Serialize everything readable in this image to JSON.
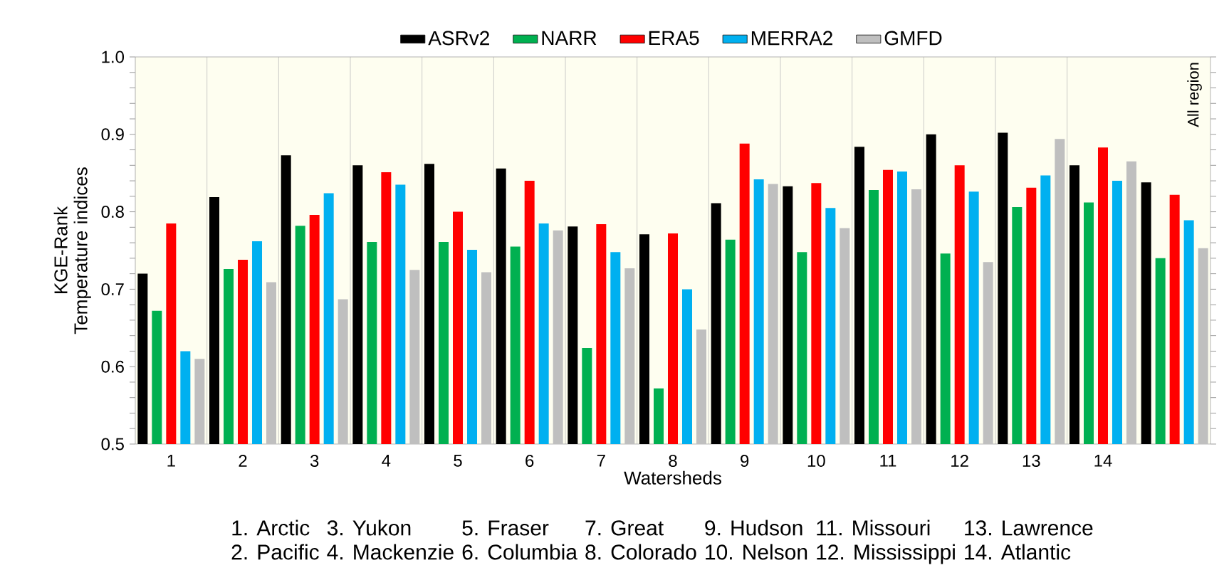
{
  "chart_data": {
    "type": "bar",
    "xlabel": "Watersheds",
    "ylabel": "KGE-Rank Temperature indices",
    "categories": [
      "1",
      "2",
      "3",
      "4",
      "5",
      "6",
      "7",
      "8",
      "9",
      "10",
      "11",
      "12",
      "13",
      "14",
      null
    ],
    "series": [
      {
        "name": "ASRv2",
        "color": "#000000",
        "values": [
          0.72,
          0.819,
          0.873,
          0.86,
          0.862,
          0.856,
          0.781,
          0.771,
          0.811,
          0.833,
          0.884,
          0.9,
          0.902,
          0.86,
          0.838
        ]
      },
      {
        "name": "NARR",
        "color": "#00b050",
        "values": [
          0.672,
          0.726,
          0.782,
          0.761,
          0.761,
          0.755,
          0.624,
          0.572,
          0.764,
          0.748,
          0.828,
          0.746,
          0.806,
          0.812,
          0.74
        ]
      },
      {
        "name": "ERA5",
        "color": "#ff0000",
        "values": [
          0.785,
          0.738,
          0.796,
          0.851,
          0.8,
          0.84,
          0.784,
          0.772,
          0.888,
          0.837,
          0.854,
          0.86,
          0.831,
          0.883,
          0.822
        ]
      },
      {
        "name": "MERRA2",
        "color": "#00b0f0",
        "values": [
          0.62,
          0.762,
          0.824,
          0.835,
          0.751,
          0.785,
          0.748,
          0.7,
          0.842,
          0.805,
          0.852,
          0.826,
          0.847,
          0.84,
          0.789
        ]
      },
      {
        "name": "GMFD",
        "color": "#bfbfbf",
        "values": [
          0.61,
          0.709,
          0.687,
          0.725,
          0.722,
          0.776,
          0.727,
          0.648,
          0.836,
          0.779,
          0.829,
          0.735,
          0.894,
          0.865,
          0.753
        ]
      }
    ],
    "ylim": [
      0.5,
      1.0
    ],
    "yticks": [
      0.5,
      {
        "value": 0.52,
        "label": null
      },
      {
        "value": 0.54,
        "label": null
      },
      {
        "value": 0.56,
        "label": null
      },
      {
        "value": 0.58,
        "label": null
      },
      0.6,
      {
        "value": 0.62,
        "label": null
      },
      {
        "value": 0.64,
        "label": null
      },
      {
        "value": 0.66,
        "label": null
      },
      {
        "value": 0.68,
        "label": null
      },
      0.7,
      {
        "value": 0.72,
        "label": null
      },
      {
        "value": 0.74,
        "label": null
      },
      {
        "value": 0.76,
        "label": null
      },
      {
        "value": 0.78,
        "label": null
      },
      0.8,
      {
        "value": 0.82,
        "label": null
      },
      {
        "value": 0.84,
        "label": null
      },
      {
        "value": 0.86,
        "label": null
      },
      {
        "value": 0.88,
        "label": null
      },
      0.9,
      {
        "value": 0.92,
        "label": null
      },
      {
        "value": 0.94,
        "label": null
      },
      {
        "value": 0.96,
        "label": null
      },
      {
        "value": 0.98,
        "label": null
      },
      {
        "value": 1.0,
        "label": "1.0"
      }
    ],
    "grid": "x",
    "legend": "top",
    "annotations": [
      "All region",
      "1. Arctic",
      "2. Pacific",
      "3. Yukon",
      "4. Mackenzie",
      "5. Fraser",
      "6. Columbia",
      "7. Great",
      "8. Colorado",
      "9. Hudson",
      "10. Nelson",
      "11. Missouri",
      "12. Mississippi",
      "13. Lawrence",
      "14. Atlantic"
    ]
  }
}
